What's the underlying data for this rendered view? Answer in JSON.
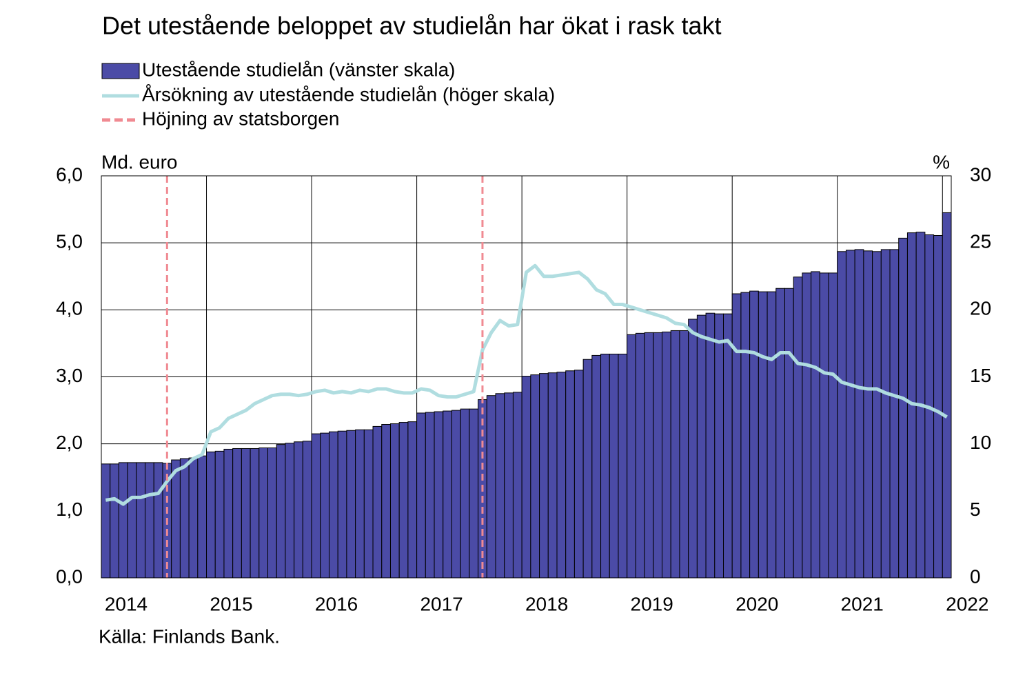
{
  "chart_data": {
    "type": "bar-line",
    "title": "Det utestående beloppet av studielån har ökat i rask takt",
    "y_label": "Md. euro",
    "y2_label": "%",
    "source": "Källa: Finlands Bank.",
    "categories": [
      "2014",
      null,
      null,
      null,
      null,
      null,
      null,
      null,
      null,
      null,
      null,
      null,
      "2015",
      null,
      null,
      null,
      null,
      null,
      null,
      null,
      null,
      null,
      null,
      null,
      "2016",
      null,
      null,
      null,
      null,
      null,
      null,
      null,
      null,
      null,
      null,
      null,
      "2017",
      null,
      null,
      null,
      null,
      null,
      null,
      null,
      null,
      null,
      null,
      null,
      "2018",
      null,
      null,
      null,
      null,
      null,
      null,
      null,
      null,
      null,
      null,
      null,
      "2019",
      null,
      null,
      null,
      null,
      null,
      null,
      null,
      null,
      null,
      null,
      null,
      "2020",
      null,
      null,
      null,
      null,
      null,
      null,
      null,
      null,
      null,
      null,
      null,
      "2021",
      null,
      null,
      null,
      null,
      null,
      null,
      null,
      null,
      null,
      null,
      null,
      "2022"
    ],
    "series": [
      {
        "name": "Utestående studielån (vänster skala)",
        "kind": "bar",
        "axis": "y",
        "color": "#4b4ba6",
        "values": [
          1.7,
          1.7,
          1.72,
          1.72,
          1.72,
          1.72,
          1.72,
          1.71,
          1.76,
          1.78,
          1.79,
          1.82,
          1.88,
          1.89,
          1.92,
          1.93,
          1.93,
          1.93,
          1.94,
          1.94,
          1.99,
          2.01,
          2.03,
          2.04,
          2.15,
          2.16,
          2.18,
          2.19,
          2.2,
          2.21,
          2.21,
          2.26,
          2.29,
          2.3,
          2.32,
          2.33,
          2.46,
          2.47,
          2.48,
          2.49,
          2.5,
          2.52,
          2.52,
          2.66,
          2.72,
          2.75,
          2.76,
          2.77,
          3.01,
          3.03,
          3.05,
          3.06,
          3.07,
          3.09,
          3.1,
          3.26,
          3.32,
          3.34,
          3.34,
          3.34,
          3.63,
          3.65,
          3.66,
          3.66,
          3.67,
          3.69,
          3.69,
          3.86,
          3.92,
          3.95,
          3.94,
          3.94,
          4.24,
          4.26,
          4.28,
          4.27,
          4.27,
          4.32,
          4.32,
          4.49,
          4.55,
          4.57,
          4.55,
          4.55,
          4.87,
          4.89,
          4.9,
          4.88,
          4.87,
          4.9,
          4.9,
          5.07,
          5.15,
          5.16,
          5.12,
          5.11,
          5.45
        ]
      },
      {
        "name": "Årsökning av utestående studielån (höger skala)",
        "kind": "line",
        "axis": "y2",
        "color": "#b0dde0",
        "values": [
          5.8,
          5.9,
          5.5,
          6.0,
          6.0,
          6.2,
          6.3,
          7.2,
          8.0,
          8.3,
          8.9,
          9.2,
          10.9,
          11.2,
          11.9,
          12.2,
          12.5,
          13.0,
          13.3,
          13.6,
          13.7,
          13.7,
          13.6,
          13.7,
          13.9,
          14.0,
          13.8,
          13.9,
          13.8,
          14.0,
          13.9,
          14.1,
          14.1,
          13.9,
          13.8,
          13.8,
          14.1,
          14.0,
          13.6,
          13.5,
          13.5,
          13.7,
          13.9,
          17.0,
          18.3,
          19.2,
          18.8,
          18.9,
          22.8,
          23.3,
          22.5,
          22.5,
          22.6,
          22.7,
          22.8,
          22.3,
          21.5,
          21.2,
          20.4,
          20.4,
          20.2,
          20.0,
          19.8,
          19.6,
          19.4,
          19.0,
          18.9,
          18.3,
          18.0,
          17.8,
          17.6,
          17.7,
          16.9,
          16.9,
          16.8,
          16.5,
          16.3,
          16.8,
          16.8,
          16.0,
          15.9,
          15.7,
          15.3,
          15.2,
          14.6,
          14.4,
          14.2,
          14.1,
          14.1,
          13.8,
          13.6,
          13.4,
          13.0,
          12.9,
          12.7,
          12.4,
          12.0
        ]
      }
    ],
    "event_lines": {
      "name": "Höjning av statsborgen",
      "color": "#f08a92",
      "at": [
        7,
        43
      ]
    },
    "ylim": [
      0,
      6
    ],
    "yticks": [
      {
        "value": 0,
        "label": "0,0"
      },
      {
        "value": 1,
        "label": "1,0"
      },
      {
        "value": 2,
        "label": "2,0"
      },
      {
        "value": 3,
        "label": "3,0"
      },
      {
        "value": 4,
        "label": "4,0"
      },
      {
        "value": 5,
        "label": "5,0"
      },
      {
        "value": 6,
        "label": "6,0"
      }
    ],
    "y2lim": [
      0,
      30
    ],
    "y2ticks": [
      0,
      5,
      10,
      15,
      20,
      25,
      30
    ],
    "grid": true
  }
}
